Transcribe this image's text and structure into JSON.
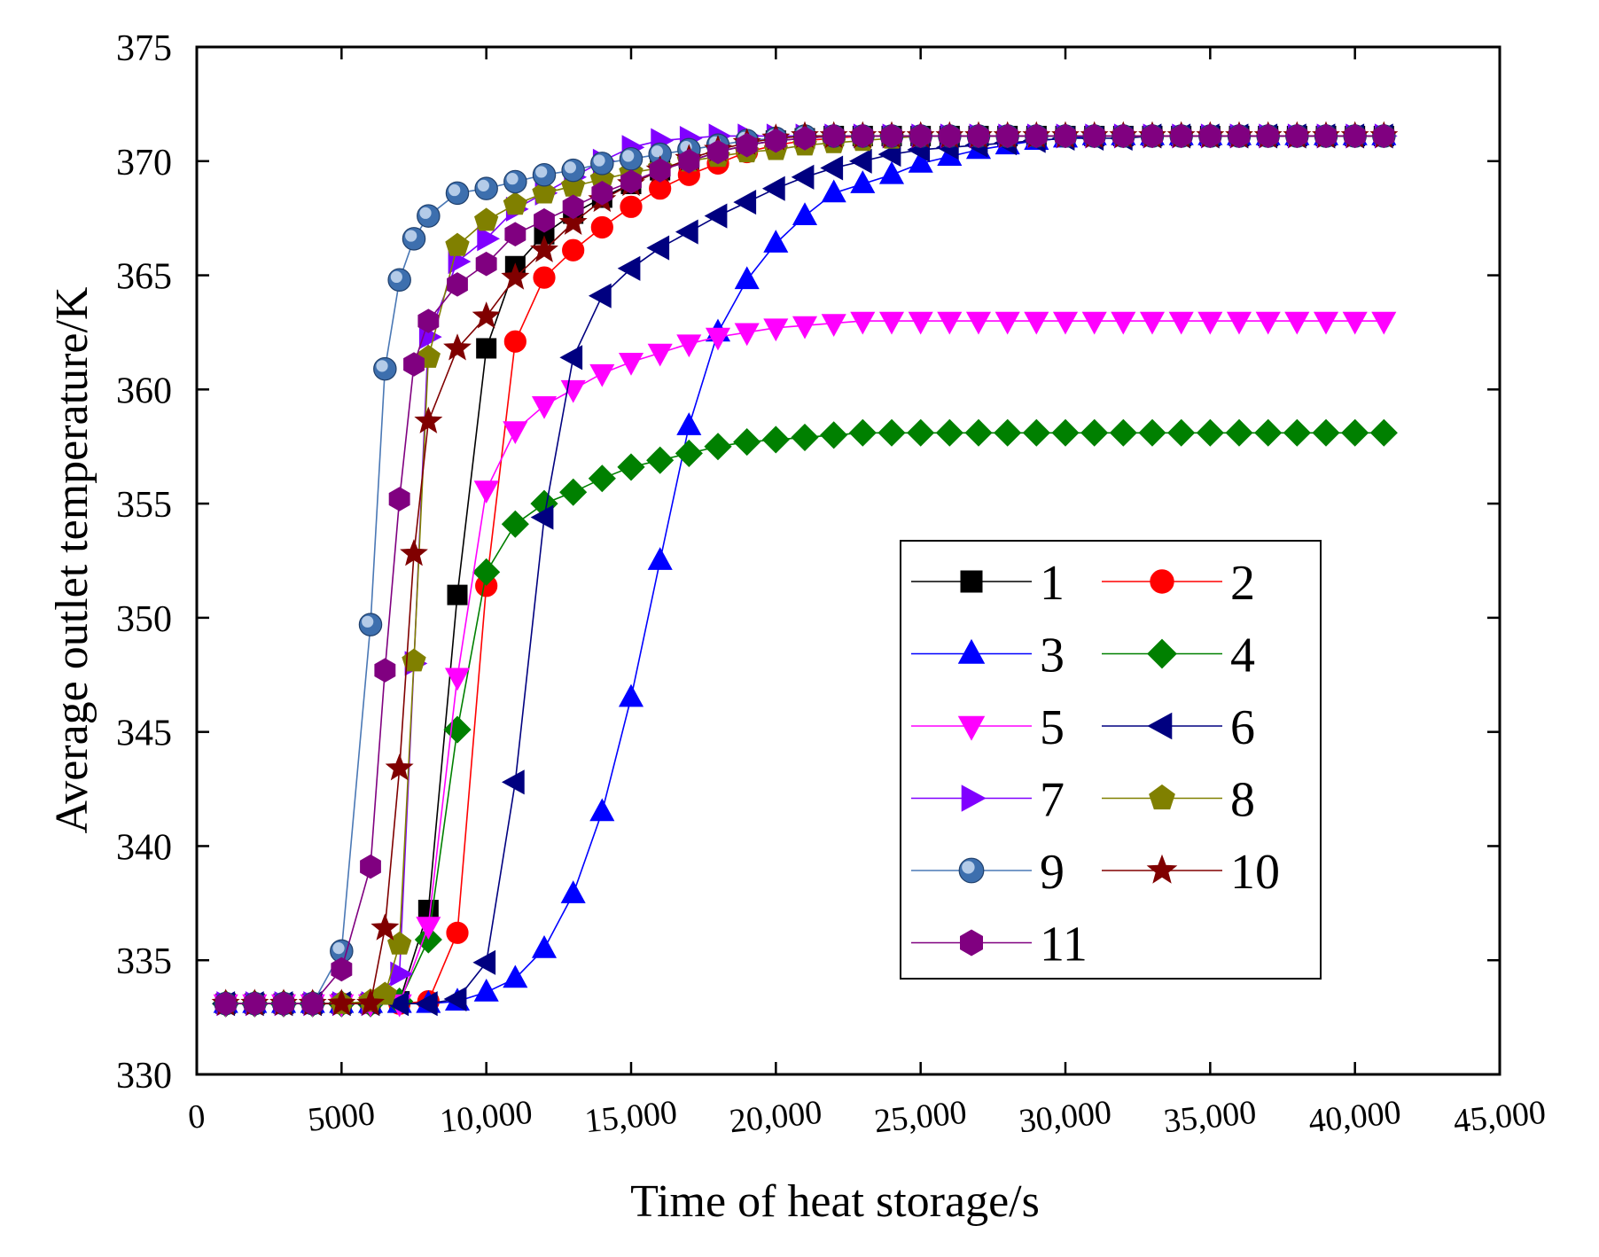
{
  "chart_data": {
    "type": "line",
    "xlabel": "Time of heat storage/s",
    "ylabel": "Average outlet temperature/K",
    "xlim": [
      0,
      45000
    ],
    "ylim": [
      330,
      375
    ],
    "xticks": [
      0,
      5000,
      10000,
      15000,
      20000,
      25000,
      30000,
      35000,
      40000,
      45000
    ],
    "xtick_labels": [
      "0",
      "5000",
      "10,000",
      "15,000",
      "20,000",
      "25,000",
      "30,000",
      "35,000",
      "40,000",
      "45,000"
    ],
    "yticks": [
      330,
      335,
      340,
      345,
      350,
      355,
      360,
      365,
      370,
      375
    ],
    "ytick_labels": [
      "330",
      "335",
      "340",
      "345",
      "350",
      "355",
      "360",
      "365",
      "370",
      "375"
    ],
    "grid": false,
    "legend_position": "lower-right",
    "series": [
      {
        "name": "1",
        "color": "#000000",
        "marker": "square",
        "x": [
          1000,
          2000,
          3000,
          4000,
          5000,
          6000,
          7000,
          8000,
          9000,
          10000,
          11000,
          12000,
          13000,
          14000,
          15000,
          16000,
          17000,
          18000,
          19000,
          20000,
          21000,
          22000,
          23000,
          24000,
          25000,
          26000,
          27000,
          28000,
          29000,
          30000,
          31000,
          32000,
          33000,
          34000,
          35000,
          36000,
          37000,
          38000,
          39000,
          40000,
          41000
        ],
        "y": [
          333.1,
          333.1,
          333.1,
          333.1,
          333.1,
          333.1,
          333.2,
          337.2,
          351.0,
          361.8,
          365.4,
          366.8,
          367.7,
          368.4,
          369.0,
          369.6,
          370.0,
          370.4,
          370.7,
          370.9,
          371.0,
          371.1,
          371.1,
          371.1,
          371.1,
          371.1,
          371.1,
          371.1,
          371.1,
          371.1,
          371.1,
          371.1,
          371.1,
          371.1,
          371.1,
          371.1,
          371.1,
          371.1,
          371.1,
          371.1,
          371.1
        ]
      },
      {
        "name": "2",
        "color": "#ff0000",
        "marker": "circle",
        "x": [
          1000,
          2000,
          3000,
          4000,
          5000,
          6000,
          7000,
          8000,
          9000,
          10000,
          11000,
          12000,
          13000,
          14000,
          15000,
          16000,
          17000,
          18000,
          19000,
          20000,
          21000,
          22000,
          23000,
          24000,
          25000,
          26000,
          27000,
          28000,
          29000,
          30000,
          31000,
          32000,
          33000,
          34000,
          35000,
          36000,
          37000,
          38000,
          39000,
          40000,
          41000
        ],
        "y": [
          333.1,
          333.1,
          333.1,
          333.1,
          333.1,
          333.1,
          333.1,
          333.2,
          336.2,
          351.4,
          362.1,
          364.9,
          366.1,
          367.1,
          368.0,
          368.8,
          369.4,
          369.9,
          370.4,
          370.7,
          370.9,
          371.0,
          371.1,
          371.1,
          371.1,
          371.1,
          371.1,
          371.1,
          371.1,
          371.1,
          371.1,
          371.1,
          371.1,
          371.1,
          371.1,
          371.1,
          371.1,
          371.1,
          371.1,
          371.1,
          371.1
        ]
      },
      {
        "name": "3",
        "color": "#0000ff",
        "marker": "triangle-up",
        "x": [
          1000,
          2000,
          3000,
          4000,
          5000,
          6000,
          7000,
          8000,
          9000,
          10000,
          11000,
          12000,
          13000,
          14000,
          15000,
          16000,
          17000,
          18000,
          19000,
          20000,
          21000,
          22000,
          23000,
          24000,
          25000,
          26000,
          27000,
          28000,
          29000,
          30000,
          31000,
          32000,
          33000,
          34000,
          35000,
          36000,
          37000,
          38000,
          39000,
          40000,
          41000
        ],
        "y": [
          333.1,
          333.1,
          333.1,
          333.1,
          333.1,
          333.1,
          333.1,
          333.1,
          333.2,
          333.6,
          334.2,
          335.5,
          337.9,
          341.5,
          346.5,
          352.5,
          358.4,
          362.5,
          364.8,
          366.4,
          367.6,
          368.6,
          369.0,
          369.4,
          369.9,
          370.2,
          370.5,
          370.7,
          370.9,
          371.0,
          371.1,
          371.1,
          371.1,
          371.1,
          371.1,
          371.1,
          371.1,
          371.1,
          371.1,
          371.1,
          371.1
        ]
      },
      {
        "name": "4",
        "color": "#008000",
        "marker": "diamond",
        "x": [
          1000,
          2000,
          3000,
          4000,
          5000,
          6000,
          7000,
          8000,
          9000,
          10000,
          11000,
          12000,
          13000,
          14000,
          15000,
          16000,
          17000,
          18000,
          19000,
          20000,
          21000,
          22000,
          23000,
          24000,
          25000,
          26000,
          27000,
          28000,
          29000,
          30000,
          31000,
          32000,
          33000,
          34000,
          35000,
          36000,
          37000,
          38000,
          39000,
          40000,
          41000
        ],
        "y": [
          333.1,
          333.1,
          333.1,
          333.1,
          333.1,
          333.1,
          333.2,
          335.9,
          345.1,
          352.0,
          354.1,
          355.0,
          355.5,
          356.1,
          356.6,
          356.9,
          357.2,
          357.5,
          357.7,
          357.8,
          357.9,
          358.0,
          358.1,
          358.1,
          358.1,
          358.1,
          358.1,
          358.1,
          358.1,
          358.1,
          358.1,
          358.1,
          358.1,
          358.1,
          358.1,
          358.1,
          358.1,
          358.1,
          358.1,
          358.1,
          358.1
        ]
      },
      {
        "name": "5",
        "color": "#ff00ff",
        "marker": "triangle-down",
        "x": [
          1000,
          2000,
          3000,
          4000,
          5000,
          6000,
          7000,
          8000,
          9000,
          10000,
          11000,
          12000,
          13000,
          14000,
          15000,
          16000,
          17000,
          18000,
          19000,
          20000,
          21000,
          22000,
          23000,
          24000,
          25000,
          26000,
          27000,
          28000,
          29000,
          30000,
          31000,
          32000,
          33000,
          34000,
          35000,
          36000,
          37000,
          38000,
          39000,
          40000,
          41000
        ],
        "y": [
          333.1,
          333.1,
          333.1,
          333.1,
          333.1,
          333.1,
          333.1,
          336.5,
          347.4,
          355.6,
          358.2,
          359.3,
          360.0,
          360.7,
          361.2,
          361.6,
          362.0,
          362.3,
          362.5,
          362.7,
          362.8,
          362.9,
          363.0,
          363.0,
          363.0,
          363.0,
          363.0,
          363.0,
          363.0,
          363.0,
          363.0,
          363.0,
          363.0,
          363.0,
          363.0,
          363.0,
          363.0,
          363.0,
          363.0,
          363.0,
          363.0
        ]
      },
      {
        "name": "6",
        "color": "#000080",
        "marker": "triangle-left",
        "x": [
          1000,
          2000,
          3000,
          4000,
          5000,
          6000,
          7000,
          8000,
          9000,
          10000,
          11000,
          12000,
          13000,
          14000,
          15000,
          16000,
          17000,
          18000,
          19000,
          20000,
          21000,
          22000,
          23000,
          24000,
          25000,
          26000,
          27000,
          28000,
          29000,
          30000,
          31000,
          32000,
          33000,
          34000,
          35000,
          36000,
          37000,
          38000,
          39000,
          40000,
          41000
        ],
        "y": [
          333.1,
          333.1,
          333.1,
          333.1,
          333.1,
          333.1,
          333.1,
          333.1,
          333.3,
          334.9,
          342.8,
          354.4,
          361.4,
          364.1,
          365.3,
          366.2,
          366.9,
          367.6,
          368.2,
          368.8,
          369.3,
          369.7,
          370.0,
          370.3,
          370.5,
          370.6,
          370.7,
          370.8,
          370.9,
          371.0,
          371.0,
          371.0,
          371.1,
          371.1,
          371.1,
          371.1,
          371.1,
          371.1,
          371.1,
          371.1,
          371.1
        ]
      },
      {
        "name": "7",
        "color": "#8000ff",
        "marker": "triangle-right",
        "x": [
          1000,
          2000,
          3000,
          4000,
          5000,
          6000,
          7000,
          7500,
          8000,
          9000,
          10000,
          11000,
          12000,
          13000,
          14000,
          15000,
          16000,
          17000,
          18000,
          19000,
          20000,
          21000,
          22000,
          23000,
          24000,
          25000,
          26000,
          27000,
          28000,
          29000,
          30000,
          31000,
          32000,
          33000,
          34000,
          35000,
          36000,
          37000,
          38000,
          39000,
          40000,
          41000
        ],
        "y": [
          333.1,
          333.1,
          333.1,
          333.1,
          333.1,
          333.1,
          334.4,
          348.0,
          362.3,
          365.6,
          366.6,
          367.9,
          368.6,
          369.3,
          370.0,
          370.6,
          370.9,
          371.0,
          371.1,
          371.1,
          371.1,
          371.1,
          371.1,
          371.1,
          371.1,
          371.1,
          371.1,
          371.1,
          371.1,
          371.1,
          371.1,
          371.1,
          371.1,
          371.1,
          371.1,
          371.1,
          371.1,
          371.1,
          371.1,
          371.1,
          371.1,
          371.1
        ]
      },
      {
        "name": "8",
        "color": "#808000",
        "marker": "pentagon",
        "x": [
          1000,
          2000,
          3000,
          4000,
          5000,
          6000,
          6500,
          7000,
          7500,
          8000,
          9000,
          10000,
          11000,
          12000,
          13000,
          14000,
          15000,
          16000,
          17000,
          18000,
          19000,
          20000,
          21000,
          22000,
          23000,
          24000,
          25000,
          26000,
          27000,
          28000,
          29000,
          30000,
          31000,
          32000,
          33000,
          34000,
          35000,
          36000,
          37000,
          38000,
          39000,
          40000,
          41000
        ],
        "y": [
          333.1,
          333.1,
          333.1,
          333.1,
          333.1,
          333.2,
          333.5,
          335.7,
          348.1,
          361.4,
          366.3,
          367.4,
          368.1,
          368.6,
          368.9,
          369.2,
          369.5,
          369.7,
          370.0,
          370.2,
          370.4,
          370.5,
          370.7,
          370.8,
          370.9,
          371.0,
          371.1,
          371.1,
          371.1,
          371.1,
          371.1,
          371.1,
          371.1,
          371.1,
          371.1,
          371.1,
          371.1,
          371.1,
          371.1,
          371.1,
          371.1,
          371.1,
          371.1
        ]
      },
      {
        "name": "9",
        "color": "#4a78b5",
        "marker": "sphere",
        "x": [
          1000,
          2000,
          3000,
          4000,
          5000,
          6000,
          6500,
          7000,
          7500,
          8000,
          9000,
          10000,
          11000,
          12000,
          13000,
          14000,
          15000,
          16000,
          17000,
          18000,
          19000,
          20000,
          21000,
          22000,
          23000,
          24000,
          25000,
          26000,
          27000,
          28000,
          29000,
          30000,
          31000,
          32000,
          33000,
          34000,
          35000,
          36000,
          37000,
          38000,
          39000,
          40000,
          41000
        ],
        "y": [
          333.1,
          333.1,
          333.1,
          333.1,
          335.4,
          349.7,
          360.9,
          364.8,
          366.6,
          367.6,
          368.6,
          368.8,
          369.1,
          369.4,
          369.6,
          369.9,
          370.1,
          370.3,
          370.5,
          370.7,
          370.9,
          371.0,
          371.1,
          371.1,
          371.1,
          371.1,
          371.1,
          371.1,
          371.1,
          371.1,
          371.1,
          371.1,
          371.1,
          371.1,
          371.1,
          371.1,
          371.1,
          371.1,
          371.1,
          371.1,
          371.1,
          371.1,
          371.1
        ]
      },
      {
        "name": "10",
        "color": "#800000",
        "marker": "star",
        "x": [
          1000,
          2000,
          3000,
          4000,
          5000,
          6000,
          6500,
          7000,
          7500,
          8000,
          9000,
          10000,
          11000,
          12000,
          13000,
          14000,
          15000,
          16000,
          17000,
          18000,
          19000,
          20000,
          21000,
          22000,
          23000,
          24000,
          25000,
          26000,
          27000,
          28000,
          29000,
          30000,
          31000,
          32000,
          33000,
          34000,
          35000,
          36000,
          37000,
          38000,
          39000,
          40000,
          41000
        ],
        "y": [
          333.1,
          333.1,
          333.1,
          333.1,
          333.1,
          333.1,
          336.4,
          343.4,
          352.8,
          358.6,
          361.8,
          363.2,
          364.9,
          366.1,
          367.3,
          368.3,
          369.0,
          369.6,
          370.1,
          370.5,
          370.8,
          371.0,
          371.1,
          371.1,
          371.1,
          371.1,
          371.1,
          371.1,
          371.1,
          371.1,
          371.1,
          371.1,
          371.1,
          371.1,
          371.1,
          371.1,
          371.1,
          371.1,
          371.1,
          371.1,
          371.1,
          371.1,
          371.1
        ]
      },
      {
        "name": "11",
        "color": "#800080",
        "marker": "hexagon",
        "x": [
          1000,
          2000,
          3000,
          4000,
          5000,
          6000,
          6500,
          7000,
          7500,
          8000,
          9000,
          10000,
          11000,
          12000,
          13000,
          14000,
          15000,
          16000,
          17000,
          18000,
          19000,
          20000,
          21000,
          22000,
          23000,
          24000,
          25000,
          26000,
          27000,
          28000,
          29000,
          30000,
          31000,
          32000,
          33000,
          34000,
          35000,
          36000,
          37000,
          38000,
          39000,
          40000,
          41000
        ],
        "y": [
          333.1,
          333.1,
          333.1,
          333.1,
          334.6,
          339.1,
          347.7,
          355.2,
          361.1,
          363.0,
          364.6,
          365.5,
          366.8,
          367.4,
          368.0,
          368.6,
          369.1,
          369.6,
          370.0,
          370.4,
          370.7,
          370.9,
          371.0,
          371.1,
          371.1,
          371.1,
          371.1,
          371.1,
          371.1,
          371.1,
          371.1,
          371.1,
          371.1,
          371.1,
          371.1,
          371.1,
          371.1,
          371.1,
          371.1,
          371.1,
          371.1,
          371.1,
          371.1
        ]
      }
    ]
  }
}
